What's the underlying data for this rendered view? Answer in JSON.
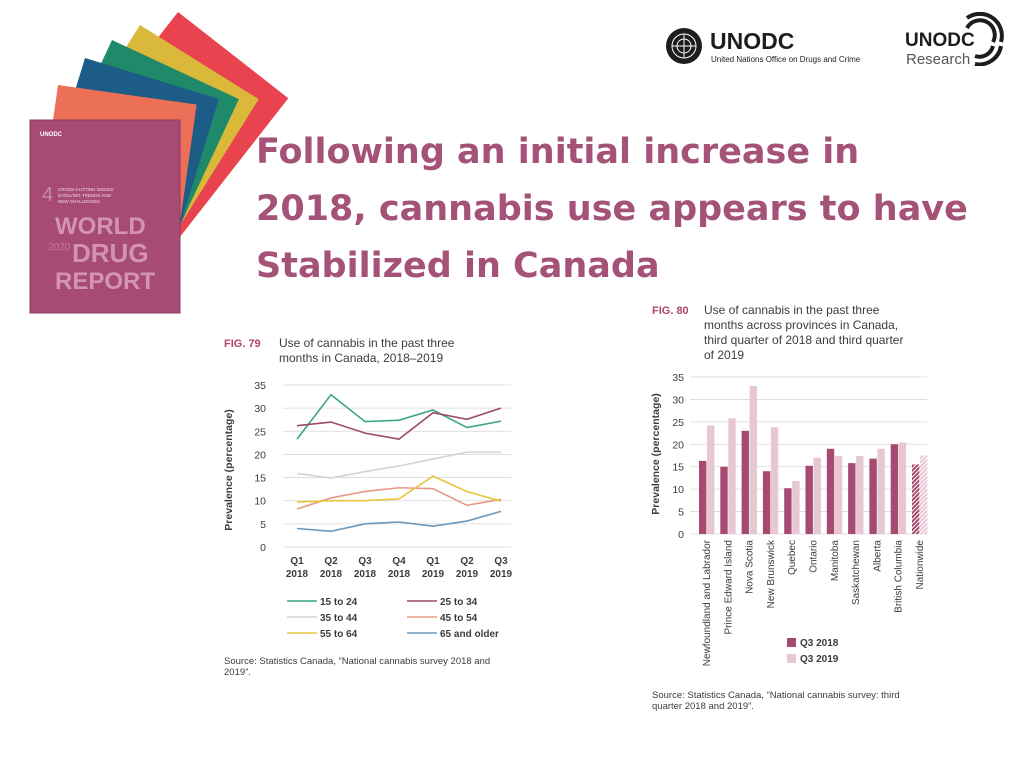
{
  "header": {
    "logo_main": "UNODC",
    "logo_main_sub": "United Nations Office on Drugs and Crime",
    "logo_research_top": "UNODC",
    "logo_research_bottom": "Research"
  },
  "title_lines": [
    "Following an initial increase in",
    "2018, cannabis use appears to have",
    "Stabilized in  Canada"
  ],
  "report_cover": {
    "org": "UNODC",
    "chapter_number": "4",
    "chapter_title_1": "CROSS-CUTTING ISSUES:",
    "chapter_title_2": "EVOLVING TRENDS AND",
    "chapter_title_3": "NEW CHALLENGES",
    "word1": "WORLD",
    "word2": "DRUG",
    "word3": "REPORT",
    "year": "2020",
    "colors": [
      "#e8434f",
      "#d9b83a",
      "#1f8a6a",
      "#1d5c86",
      "#ec6f57",
      "#a84a76"
    ]
  },
  "fig79": {
    "label": "FIG. 79",
    "caption_1": "Use of cannabis in the past three",
    "caption_2": "months in Canada, 2018–2019",
    "source_1": "Source: Statistics Canada, “National cannabis survey 2018 and",
    "source_2": "2019”."
  },
  "fig80": {
    "label": "FIG. 80",
    "caption_1": "Use of cannabis in the past three",
    "caption_2": "months across provinces in Canada,",
    "caption_3": "third quarter of 2018 and third quarter",
    "caption_4": "of 2019",
    "source_1": "Source: Statistics Canada, “National cannabis survey: third",
    "source_2": "quarter 2018 and 2019”."
  },
  "chart_data": [
    {
      "type": "line",
      "title": "Use of cannabis in the past three months in Canada, 2018–2019",
      "xlabel": "",
      "ylabel": "Prevalence (percentage)",
      "ylim": [
        0,
        35
      ],
      "yticks": [
        0,
        5,
        10,
        15,
        20,
        25,
        30,
        35
      ],
      "grid": true,
      "categories": [
        [
          "Q1",
          "2018"
        ],
        [
          "Q2",
          "2018"
        ],
        [
          "Q3",
          "2018"
        ],
        [
          "Q4",
          "2018"
        ],
        [
          "Q1",
          "2019"
        ],
        [
          "Q2",
          "2019"
        ],
        [
          "Q3",
          "2019"
        ]
      ],
      "series": [
        {
          "name": "15 to 24",
          "color": "#3aa783",
          "values": [
            23.3,
            32.9,
            27.1,
            27.4,
            29.6,
            25.8,
            27.2
          ]
        },
        {
          "name": "25 to 34",
          "color": "#9b4a6c",
          "values": [
            26.2,
            27.0,
            24.6,
            23.3,
            29.0,
            27.6,
            30.0
          ]
        },
        {
          "name": "35  to 44",
          "color": "#d3d3d3",
          "values": [
            15.9,
            14.9,
            16.3,
            17.5,
            19.0,
            20.5,
            20.5
          ]
        },
        {
          "name": "45 to 54",
          "color": "#e89a86",
          "values": [
            8.2,
            10.6,
            12.0,
            12.8,
            12.6,
            9.0,
            10.3
          ]
        },
        {
          "name": "55 to 64",
          "color": "#e8c53a",
          "values": [
            9.7,
            10.0,
            10.0,
            10.4,
            15.3,
            12.0,
            9.9
          ]
        },
        {
          "name": "65 and older",
          "color": "#6e97b8",
          "values": [
            4.0,
            3.4,
            5.0,
            5.4,
            4.5,
            5.6,
            7.7
          ]
        }
      ]
    },
    {
      "type": "bar",
      "title": "Use of cannabis in the past three months across provinces in Canada, third quarter of 2018 and third quarter of 2019",
      "xlabel": "",
      "ylabel": "Prevalence (percentage)",
      "ylim": [
        0,
        35
      ],
      "yticks": [
        0,
        5,
        10,
        15,
        20,
        25,
        30,
        35
      ],
      "grid": true,
      "categories": [
        "Newfoundland and Labrador",
        "Prince Edward Island",
        "Nova Scotia",
        "New Brunswick",
        "Quebec",
        "Ontario",
        "Manitoba",
        "Saskatchewan",
        "Alberta",
        "British Columbia",
        "Nationwide"
      ],
      "series": [
        {
          "name": "Q3 2018",
          "color": "#a74a72",
          "values": [
            16.3,
            15.0,
            23.0,
            14.0,
            10.2,
            15.2,
            19.0,
            15.8,
            16.8,
            20.0,
            15.5
          ]
        },
        {
          "name": "Q3 2019",
          "color": "#e6c7d2",
          "values": [
            24.2,
            25.8,
            33.0,
            23.8,
            11.8,
            17.0,
            17.4,
            17.4,
            19.0,
            20.4,
            17.5
          ]
        }
      ]
    }
  ]
}
